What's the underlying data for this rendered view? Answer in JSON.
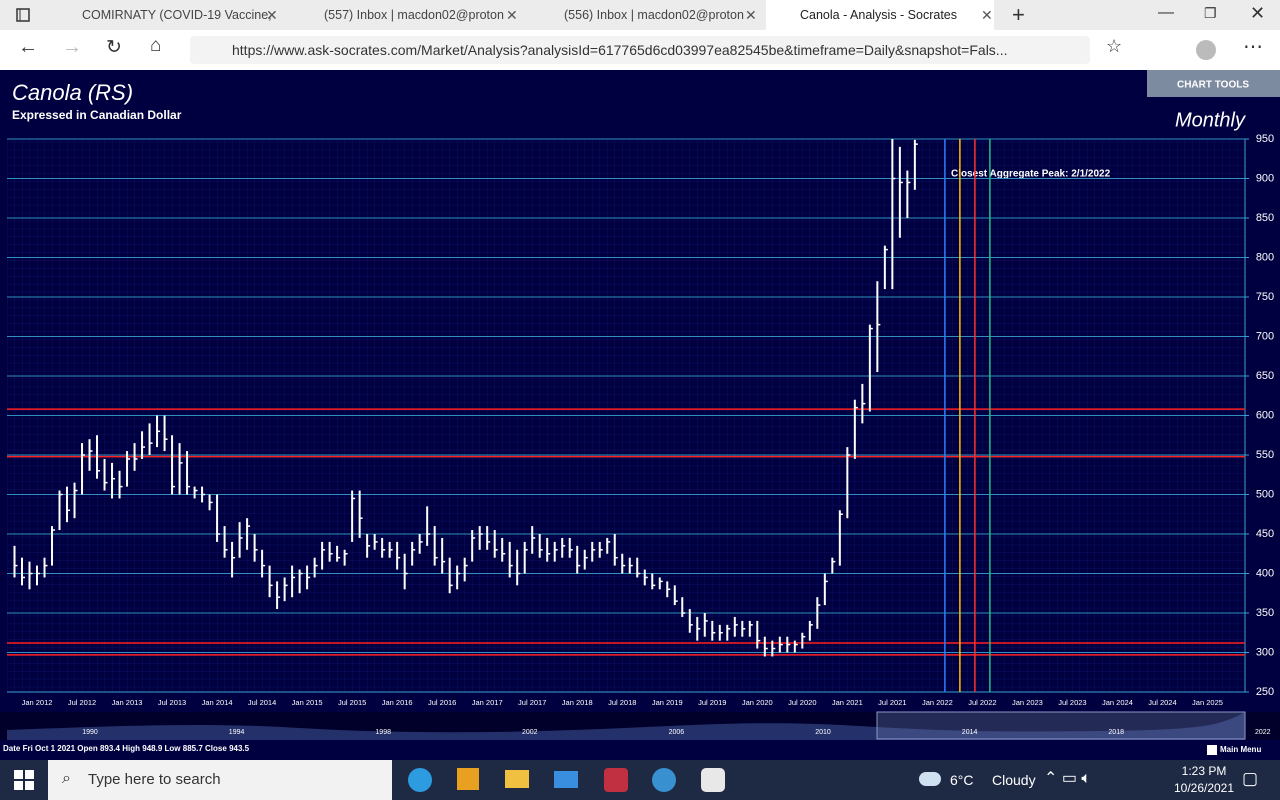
{
  "browser": {
    "tabs": [
      "COMIRNATY (COVID-19 Vaccine,",
      "(557) Inbox | macdon02@proton",
      "(556) Inbox | macdon02@proton",
      "Canola - Analysis - Socrates"
    ],
    "url": "https://www.ask-socrates.com/Market/Analysis?analysisId=617765d6cd03997ea82545be&timeframe=Daily&snapshot=Fals..."
  },
  "header": {
    "chart_tools": "CHART TOOLS",
    "timeframe": "Monthly",
    "main_menu": "Main Menu"
  },
  "chart_data": {
    "type": "ohlc",
    "title": "Canola (RS)",
    "subtitle": "Expressed in Canadian Dollar",
    "annotation": "Closest Aggregate Peak: 2/1/2022",
    "x": [
      "Oct 2011",
      "Nov 2011",
      "Dec 2011",
      "Jan 2012",
      "Feb 2012",
      "Mar 2012",
      "Apr 2012",
      "May 2012",
      "Jun 2012",
      "Jul 2012",
      "Aug 2012",
      "Sep 2012",
      "Oct 2012",
      "Nov 2012",
      "Dec 2012",
      "Jan 2013",
      "Feb 2013",
      "Mar 2013",
      "Apr 2013",
      "May 2013",
      "Jun 2013",
      "Jul 2013",
      "Aug 2013",
      "Sep 2013",
      "Oct 2013",
      "Nov 2013",
      "Dec 2013",
      "Jan 2014",
      "Feb 2014",
      "Mar 2014",
      "Apr 2014",
      "May 2014",
      "Jun 2014",
      "Jul 2014",
      "Aug 2014",
      "Sep 2014",
      "Oct 2014",
      "Nov 2014",
      "Dec 2014",
      "Jan 2015",
      "Feb 2015",
      "Mar 2015",
      "Apr 2015",
      "May 2015",
      "Jun 2015",
      "Jul 2015",
      "Aug 2015",
      "Sep 2015",
      "Oct 2015",
      "Nov 2015",
      "Dec 2015",
      "Jan 2016",
      "Feb 2016",
      "Mar 2016",
      "Apr 2016",
      "May 2016",
      "Jun 2016",
      "Jul 2016",
      "Aug 2016",
      "Sep 2016",
      "Oct 2016",
      "Nov 2016",
      "Dec 2016",
      "Jan 2017",
      "Feb 2017",
      "Mar 2017",
      "Apr 2017",
      "May 2017",
      "Jun 2017",
      "Jul 2017",
      "Aug 2017",
      "Sep 2017",
      "Oct 2017",
      "Nov 2017",
      "Dec 2017",
      "Jan 2018",
      "Feb 2018",
      "Mar 2018",
      "Apr 2018",
      "May 2018",
      "Jun 2018",
      "Jul 2018",
      "Aug 2018",
      "Sep 2018",
      "Oct 2018",
      "Nov 2018",
      "Dec 2018",
      "Jan 2019",
      "Feb 2019",
      "Mar 2019",
      "Apr 2019",
      "May 2019",
      "Jun 2019",
      "Jul 2019",
      "Aug 2019",
      "Sep 2019",
      "Oct 2019",
      "Nov 2019",
      "Dec 2019",
      "Jan 2020",
      "Feb 2020",
      "Mar 2020",
      "Apr 2020",
      "May 2020",
      "Jun 2020",
      "Jul 2020",
      "Aug 2020",
      "Sep 2020",
      "Oct 2020",
      "Nov 2020",
      "Dec 2020",
      "Jan 2021",
      "Feb 2021",
      "Mar 2021",
      "Apr 2021",
      "May 2021",
      "Jun 2021",
      "Jul 2021",
      "Aug 2021",
      "Sep 2021",
      "Oct 2021"
    ],
    "high": [
      435,
      420,
      415,
      410,
      420,
      460,
      505,
      510,
      515,
      565,
      570,
      575,
      545,
      540,
      530,
      555,
      565,
      580,
      590,
      600,
      600,
      575,
      565,
      555,
      510,
      510,
      500,
      500,
      460,
      440,
      465,
      470,
      450,
      430,
      410,
      390,
      395,
      410,
      405,
      410,
      420,
      440,
      440,
      435,
      430,
      505,
      505,
      450,
      450,
      445,
      440,
      440,
      425,
      440,
      450,
      485,
      460,
      445,
      420,
      410,
      420,
      455,
      460,
      460,
      455,
      445,
      440,
      430,
      440,
      460,
      450,
      445,
      440,
      445,
      445,
      435,
      430,
      440,
      440,
      445,
      450,
      425,
      420,
      420,
      405,
      400,
      395,
      390,
      385,
      370,
      355,
      345,
      350,
      340,
      335,
      335,
      345,
      340,
      340,
      340,
      320,
      315,
      320,
      320,
      315,
      325,
      340,
      370,
      400,
      420,
      480,
      560,
      620,
      640,
      715,
      770,
      815,
      950,
      940,
      910,
      948.9
    ],
    "low": [
      395,
      385,
      380,
      385,
      395,
      410,
      455,
      465,
      470,
      500,
      530,
      520,
      505,
      495,
      495,
      510,
      530,
      545,
      550,
      560,
      555,
      500,
      500,
      500,
      495,
      490,
      480,
      440,
      420,
      395,
      420,
      430,
      415,
      395,
      370,
      355,
      365,
      370,
      375,
      380,
      395,
      405,
      415,
      415,
      410,
      440,
      445,
      420,
      430,
      420,
      420,
      405,
      380,
      410,
      425,
      435,
      410,
      400,
      375,
      380,
      390,
      415,
      430,
      430,
      420,
      415,
      395,
      385,
      400,
      425,
      420,
      415,
      415,
      420,
      420,
      400,
      405,
      415,
      420,
      425,
      410,
      400,
      400,
      395,
      385,
      380,
      380,
      370,
      360,
      345,
      325,
      315,
      320,
      315,
      315,
      315,
      320,
      320,
      320,
      305,
      295,
      295,
      300,
      300,
      300,
      305,
      315,
      330,
      360,
      400,
      410,
      470,
      545,
      590,
      605,
      655,
      760,
      760,
      825,
      850,
      885.7
    ],
    "close": [
      410,
      395,
      400,
      400,
      410,
      455,
      500,
      480,
      505,
      550,
      555,
      530,
      515,
      520,
      510,
      545,
      545,
      560,
      565,
      580,
      570,
      510,
      540,
      510,
      505,
      500,
      490,
      450,
      430,
      420,
      445,
      460,
      430,
      410,
      385,
      370,
      385,
      395,
      400,
      395,
      410,
      430,
      425,
      420,
      425,
      495,
      470,
      435,
      440,
      430,
      430,
      420,
      400,
      430,
      440,
      450,
      420,
      415,
      385,
      400,
      410,
      445,
      450,
      440,
      430,
      425,
      410,
      400,
      430,
      445,
      430,
      425,
      430,
      435,
      430,
      410,
      420,
      430,
      430,
      440,
      420,
      410,
      410,
      400,
      395,
      385,
      390,
      380,
      365,
      350,
      335,
      330,
      340,
      325,
      325,
      330,
      335,
      330,
      335,
      315,
      305,
      305,
      310,
      310,
      310,
      320,
      335,
      360,
      390,
      415,
      475,
      550,
      610,
      615,
      710,
      715,
      810,
      900,
      895,
      895,
      943.5
    ],
    "color": "#ffffff",
    "xlim": [
      "Sep 2011",
      "Jun 2025"
    ],
    "xticks": [
      "Jan 2012",
      "Jul 2012",
      "Jan 2013",
      "Jul 2013",
      "Jan 2014",
      "Jul 2014",
      "Jan 2015",
      "Jul 2015",
      "Jan 2016",
      "Jul 2016",
      "Jan 2017",
      "Jul 2017",
      "Jan 2018",
      "Jul 2018",
      "Jan 2019",
      "Jul 2019",
      "Jan 2020",
      "Jul 2020",
      "Jan 2021",
      "Jul 2021",
      "Jan 2022",
      "Jul 2022",
      "Jan 2023",
      "Jul 2023",
      "Jan 2024",
      "Jul 2024",
      "Jan 2025"
    ],
    "ylim": [
      250,
      950
    ],
    "yticks": [
      250,
      300,
      350,
      400,
      450,
      500,
      550,
      600,
      650,
      700,
      750,
      800,
      850,
      900,
      950
    ],
    "grid": true,
    "ref_lines": [
      {
        "value": 608,
        "color": "#ff2020"
      },
      {
        "value": 548,
        "color": "#ff2020"
      },
      {
        "value": 312,
        "color": "#ff2020"
      },
      {
        "value": 297,
        "color": "#ff2020"
      }
    ],
    "cycle_lines": [
      {
        "x": "Feb 2022",
        "color": "#2a7fff"
      },
      {
        "x": "Apr 2022",
        "color": "#ffc000"
      },
      {
        "x": "Jun 2022",
        "color": "#ff3030"
      },
      {
        "x": "Aug 2022",
        "color": "#20c080"
      }
    ]
  },
  "navigator": {
    "labels": [
      "1990",
      "1994",
      "1998",
      "2002",
      "2006",
      "2010",
      "2014",
      "2018",
      "2022"
    ]
  },
  "status": {
    "date_label": "Date",
    "date": "Fri Oct 1 2021",
    "open_label": "Open",
    "open": 893.4,
    "high_label": "High",
    "high": 948.9,
    "low_label": "Low",
    "low": 885.7,
    "close_label": "Close",
    "close": 943.5
  },
  "taskbar": {
    "search": "Type here to search",
    "temperature": "6°C",
    "weather": "Cloudy",
    "time": "1:23 PM",
    "date": "10/26/2021"
  }
}
